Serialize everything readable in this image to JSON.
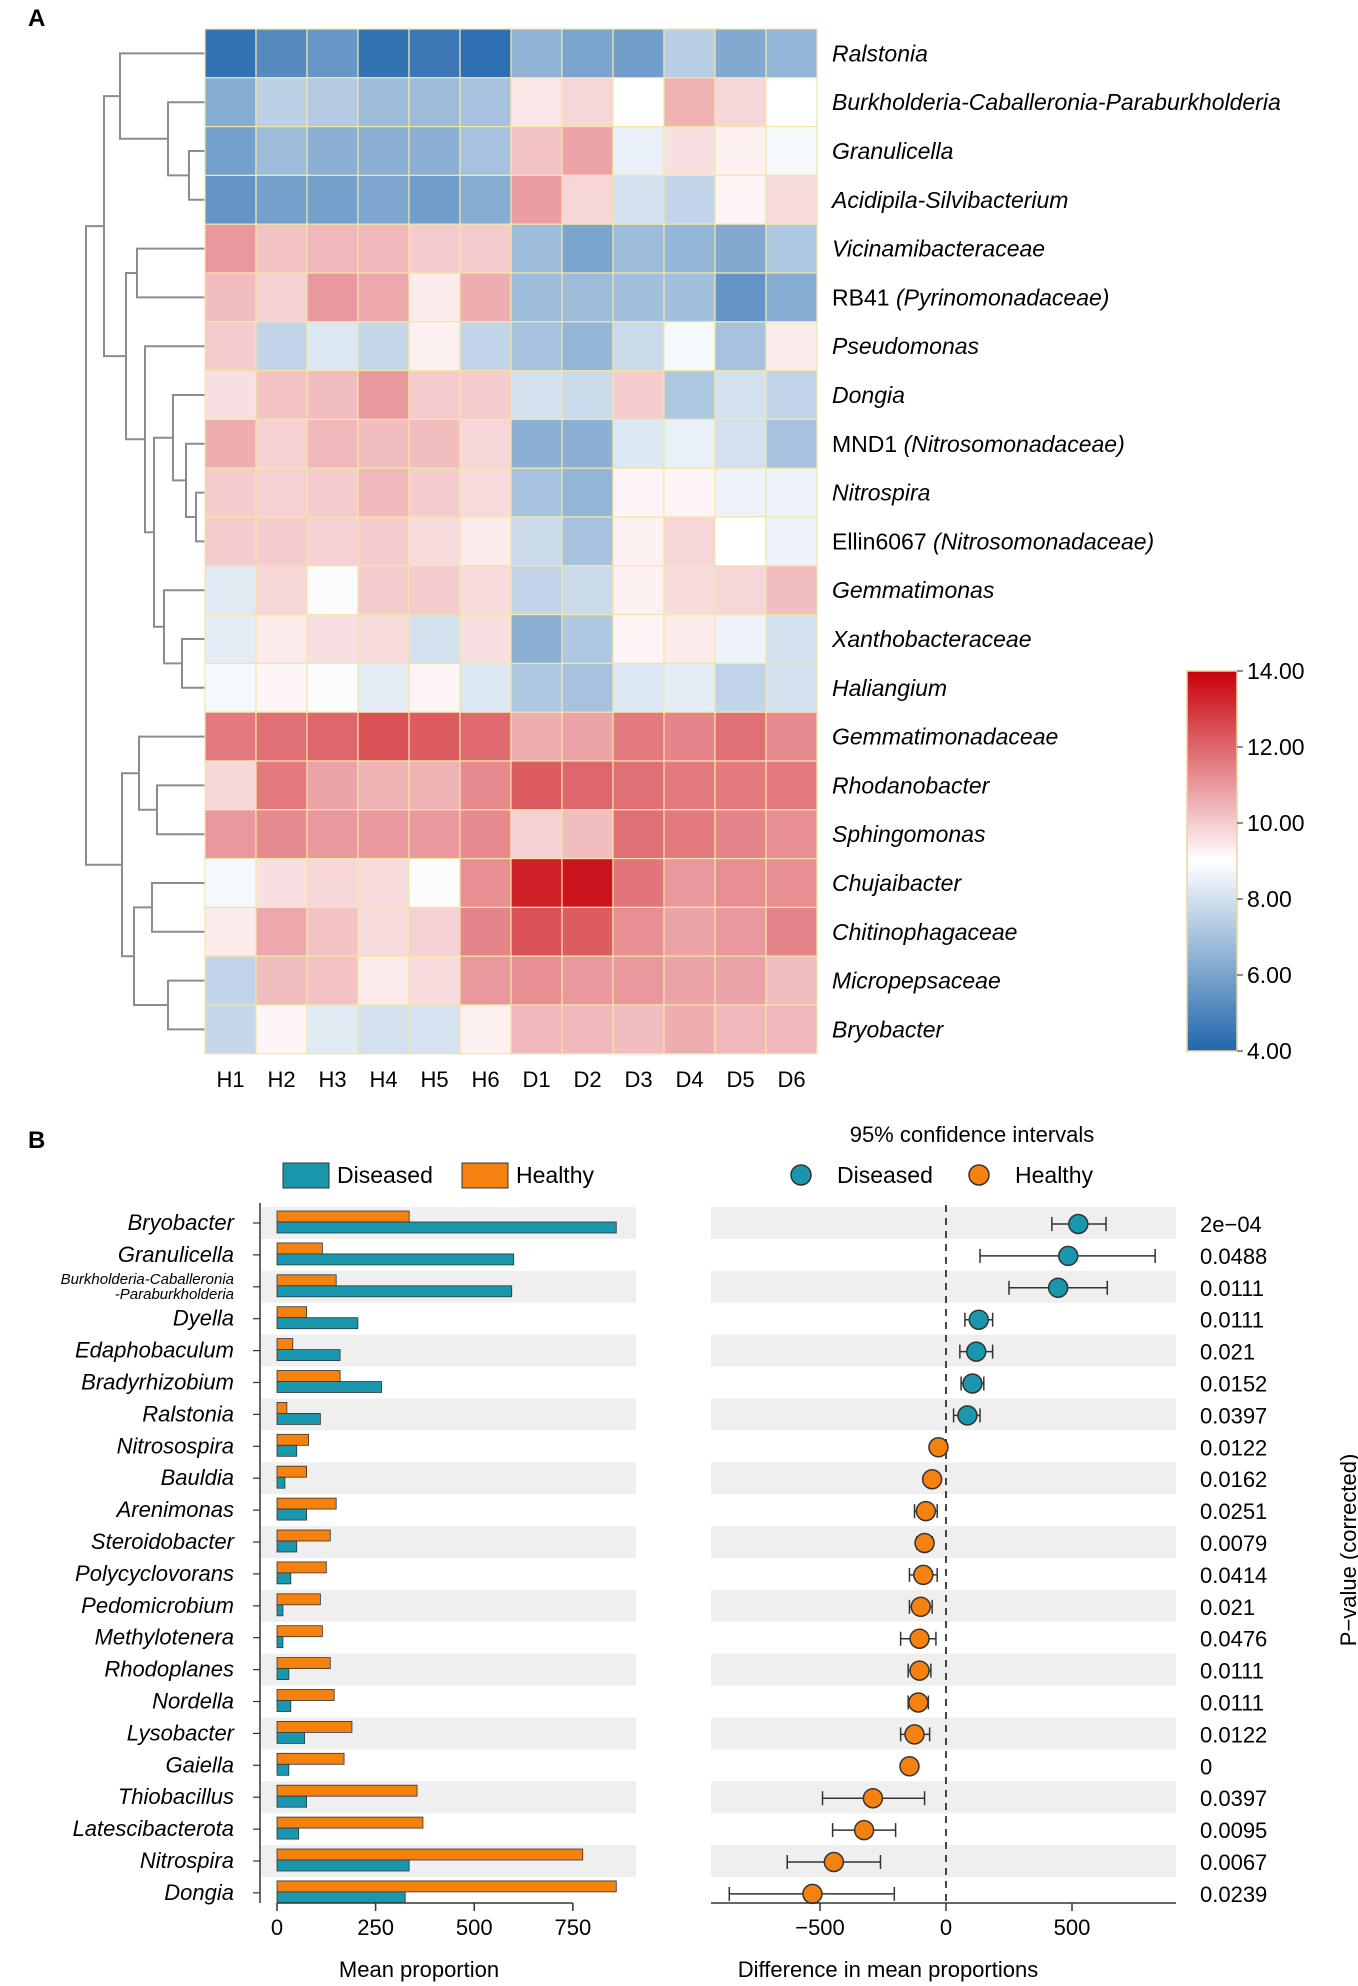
{
  "panel_labels": {
    "a": "A",
    "b": "B"
  },
  "colors": {
    "low": "#2166ac",
    "mid": "#ffffff",
    "high": "#c8000a",
    "cell_border": "#f2e6a6",
    "diseased": "#1a97ac",
    "healthy": "#f5820f",
    "row_shade": "#efefef",
    "dendrogram": "#8c8c8c"
  },
  "chart_data": [
    {
      "type": "heatmap",
      "title": "",
      "columns": [
        "H1",
        "H2",
        "H3",
        "H4",
        "H5",
        "H6",
        "D1",
        "D2",
        "D3",
        "D4",
        "D5",
        "D6"
      ],
      "rows": [
        {
          "parts": [
            {
              "t": "Ralstonia",
              "i": true
            }
          ]
        },
        {
          "parts": [
            {
              "t": "Burkholderia-Caballeronia-Paraburkholderia",
              "i": true
            }
          ]
        },
        {
          "parts": [
            {
              "t": "Granulicella",
              "i": true
            }
          ]
        },
        {
          "parts": [
            {
              "t": "Acidipila-Silvibacterium",
              "i": true
            }
          ]
        },
        {
          "parts": [
            {
              "t": "Vicinamibacteraceae",
              "i": true
            }
          ]
        },
        {
          "parts": [
            {
              "t": "RB41 ",
              "i": false
            },
            {
              "t": "(Pyrinomonadaceae)",
              "i": true
            }
          ]
        },
        {
          "parts": [
            {
              "t": "Pseudomonas",
              "i": true
            }
          ]
        },
        {
          "parts": [
            {
              "t": "Dongia",
              "i": true
            }
          ]
        },
        {
          "parts": [
            {
              "t": "MND1 ",
              "i": false
            },
            {
              "t": "(Nitrosomonadaceae)",
              "i": true
            }
          ]
        },
        {
          "parts": [
            {
              "t": "Nitrospira",
              "i": true
            }
          ]
        },
        {
          "parts": [
            {
              "t": "Ellin6067 ",
              "i": false
            },
            {
              "t": "(Nitrosomonadaceae)",
              "i": true
            }
          ]
        },
        {
          "parts": [
            {
              "t": "Gemmatimonas",
              "i": true
            }
          ]
        },
        {
          "parts": [
            {
              "t": "Xanthobacteraceae",
              "i": true
            }
          ]
        },
        {
          "parts": [
            {
              "t": "Haliangium",
              "i": true
            }
          ]
        },
        {
          "parts": [
            {
              "t": "Gemmatimonadaceae",
              "i": true
            }
          ]
        },
        {
          "parts": [
            {
              "t": "Rhodanobacter",
              "i": true
            }
          ]
        },
        {
          "parts": [
            {
              "t": "Sphingomonas",
              "i": true
            }
          ]
        },
        {
          "parts": [
            {
              "t": "Chujaibacter",
              "i": true
            }
          ]
        },
        {
          "parts": [
            {
              "t": "Chitinophagaceae",
              "i": true
            }
          ]
        },
        {
          "parts": [
            {
              "t": "Micropepsaceae",
              "i": true
            }
          ]
        },
        {
          "parts": [
            {
              "t": "Bryobacter",
              "i": true
            }
          ]
        }
      ],
      "values": [
        [
          4.4,
          5.2,
          5.6,
          4.4,
          4.6,
          4.3,
          6.5,
          6.0,
          5.8,
          7.4,
          6.2,
          6.6
        ],
        [
          6.3,
          7.5,
          7.3,
          6.8,
          6.8,
          7.0,
          9.5,
          9.8,
          9.0,
          10.5,
          9.8,
          9.0
        ],
        [
          5.9,
          6.8,
          6.4,
          6.4,
          6.4,
          7.0,
          10.2,
          10.8,
          8.5,
          9.6,
          9.3,
          8.8
        ],
        [
          5.5,
          5.9,
          5.9,
          6.1,
          5.8,
          6.3,
          10.9,
          9.8,
          8.0,
          7.6,
          9.2,
          9.7
        ],
        [
          11.0,
          10.2,
          10.4,
          10.4,
          10.0,
          10.0,
          6.8,
          6.0,
          6.8,
          6.6,
          6.2,
          7.2
        ],
        [
          10.3,
          9.9,
          11.0,
          10.7,
          9.4,
          10.6,
          6.8,
          6.8,
          6.9,
          6.9,
          5.5,
          6.3
        ],
        [
          10.0,
          7.6,
          8.2,
          7.7,
          9.3,
          7.6,
          7.0,
          6.6,
          7.8,
          8.8,
          7.0,
          9.4
        ],
        [
          9.6,
          10.2,
          10.3,
          11.0,
          10.0,
          10.0,
          8.0,
          7.8,
          10.0,
          7.2,
          8.0,
          7.6
        ],
        [
          10.6,
          9.9,
          10.4,
          10.3,
          10.3,
          9.8,
          6.4,
          6.4,
          8.2,
          8.5,
          8.0,
          7.0
        ],
        [
          10.0,
          9.9,
          10.0,
          10.4,
          10.0,
          9.7,
          7.0,
          6.6,
          9.2,
          9.2,
          8.6,
          8.6
        ],
        [
          10.0,
          10.0,
          9.9,
          10.0,
          9.7,
          9.4,
          7.8,
          7.0,
          9.3,
          9.8,
          9.0,
          8.6
        ],
        [
          8.3,
          9.8,
          8.9,
          10.0,
          10.0,
          9.7,
          7.6,
          7.8,
          9.3,
          9.7,
          9.8,
          10.3
        ],
        [
          8.4,
          9.4,
          9.6,
          9.7,
          8.0,
          9.6,
          6.4,
          7.2,
          9.2,
          9.4,
          8.6,
          8.0
        ],
        [
          8.8,
          9.2,
          8.9,
          8.4,
          9.2,
          8.2,
          7.2,
          7.0,
          8.2,
          8.4,
          7.6,
          8.0
        ],
        [
          11.6,
          11.8,
          12.0,
          12.4,
          12.2,
          11.9,
          10.6,
          10.8,
          11.6,
          11.4,
          11.8,
          11.3
        ],
        [
          9.8,
          11.6,
          10.8,
          10.5,
          10.5,
          11.3,
          12.2,
          12.0,
          11.8,
          11.6,
          11.6,
          11.6
        ],
        [
          11.0,
          11.3,
          11.0,
          11.0,
          11.0,
          11.3,
          9.9,
          10.3,
          11.8,
          11.6,
          11.4,
          11.2
        ],
        [
          8.8,
          9.6,
          9.8,
          9.7,
          8.9,
          11.2,
          13.4,
          13.6,
          11.7,
          11.0,
          11.2,
          11.2
        ],
        [
          9.4,
          10.7,
          10.2,
          9.7,
          9.9,
          11.4,
          12.4,
          12.2,
          11.2,
          10.8,
          11.0,
          11.4
        ],
        [
          7.6,
          10.3,
          10.2,
          9.4,
          9.7,
          11.0,
          11.2,
          11.0,
          11.0,
          10.8,
          10.8,
          10.3
        ],
        [
          7.7,
          9.2,
          8.3,
          8.0,
          8.1,
          9.3,
          10.4,
          10.4,
          10.3,
          10.6,
          10.4,
          10.4
        ]
      ],
      "color_range": [
        4.0,
        14.0
      ],
      "colorbar_ticks": [
        "14.00",
        "12.00",
        "10.00",
        "8.00",
        "6.00",
        "4.00"
      ]
    },
    {
      "type": "bar",
      "title": "",
      "xlabel": "Mean proportion",
      "xlim": [
        -30,
        910
      ],
      "xticks": [
        0,
        250,
        500,
        750
      ],
      "legend": [
        {
          "name": "Diseased",
          "color_key": "diseased"
        },
        {
          "name": "Healthy",
          "color_key": "healthy"
        }
      ],
      "categories": [
        "Bryobacter",
        "Granulicella",
        "Burkholderia-Caballeronia\n-Paraburkholderia",
        "Dyella",
        "Edaphobaculum",
        "Bradyrhizobium",
        "Ralstonia",
        "Nitrosospira",
        "Bauldia",
        "Arenimonas",
        "Steroidobacter",
        "Polycyclovorans",
        "Pedomicrobium",
        "Methylotenera",
        "Rhodoplanes",
        "Nordella",
        "Lysobacter",
        "Gaiella",
        "Thiobacillus",
        "Latescibacterota",
        "Nitrospira",
        "Dongia"
      ],
      "series": [
        {
          "name": "Healthy",
          "values": [
            335,
            115,
            150,
            75,
            40,
            160,
            25,
            80,
            75,
            150,
            135,
            125,
            110,
            115,
            135,
            145,
            190,
            170,
            355,
            370,
            775,
            860
          ]
        },
        {
          "name": "Diseased",
          "values": [
            860,
            600,
            595,
            205,
            160,
            265,
            110,
            50,
            20,
            75,
            50,
            35,
            15,
            15,
            30,
            35,
            70,
            30,
            75,
            55,
            335,
            325
          ]
        }
      ]
    },
    {
      "type": "scatter",
      "title": "95% confidence intervals",
      "xlabel": "Difference in mean proportions",
      "ylabel": "P−value (corrected)",
      "xlim": [
        -900,
        900
      ],
      "xticks": [
        -500,
        0,
        500
      ],
      "xtick_labels": [
        "−500",
        "0",
        "500"
      ],
      "legend": [
        {
          "name": "Diseased",
          "color_key": "diseased"
        },
        {
          "name": "Healthy",
          "color_key": "healthy"
        }
      ],
      "points": [
        {
          "diff": 525,
          "low": 420,
          "high": 635,
          "group": "diseased",
          "p": "2e−04"
        },
        {
          "diff": 485,
          "low": 135,
          "high": 830,
          "group": "diseased",
          "p": "0.0488"
        },
        {
          "diff": 445,
          "low": 250,
          "high": 640,
          "group": "diseased",
          "p": "0.0111"
        },
        {
          "diff": 130,
          "low": 75,
          "high": 185,
          "group": "diseased",
          "p": "0.0111"
        },
        {
          "diff": 120,
          "low": 55,
          "high": 185,
          "group": "diseased",
          "p": "0.021"
        },
        {
          "diff": 105,
          "low": 60,
          "high": 150,
          "group": "diseased",
          "p": "0.0152"
        },
        {
          "diff": 85,
          "low": 30,
          "high": 135,
          "group": "diseased",
          "p": "0.0397"
        },
        {
          "diff": -30,
          "low": -40,
          "high": -20,
          "group": "healthy",
          "p": "0.0122"
        },
        {
          "diff": -55,
          "low": -75,
          "high": -35,
          "group": "healthy",
          "p": "0.0162"
        },
        {
          "diff": -80,
          "low": -125,
          "high": -35,
          "group": "healthy",
          "p": "0.0251"
        },
        {
          "diff": -85,
          "low": -115,
          "high": -55,
          "group": "healthy",
          "p": "0.0079"
        },
        {
          "diff": -90,
          "low": -145,
          "high": -35,
          "group": "healthy",
          "p": "0.0414"
        },
        {
          "diff": -100,
          "low": -145,
          "high": -55,
          "group": "healthy",
          "p": "0.021"
        },
        {
          "diff": -105,
          "low": -180,
          "high": -40,
          "group": "healthy",
          "p": "0.0476"
        },
        {
          "diff": -105,
          "low": -150,
          "high": -60,
          "group": "healthy",
          "p": "0.0111"
        },
        {
          "diff": -110,
          "low": -150,
          "high": -70,
          "group": "healthy",
          "p": "0.0111"
        },
        {
          "diff": -125,
          "low": -180,
          "high": -65,
          "group": "healthy",
          "p": "0.0122"
        },
        {
          "diff": -145,
          "low": -160,
          "high": -130,
          "group": "healthy",
          "p": "0"
        },
        {
          "diff": -290,
          "low": -490,
          "high": -85,
          "group": "healthy",
          "p": "0.0397"
        },
        {
          "diff": -325,
          "low": -450,
          "high": -200,
          "group": "healthy",
          "p": "0.0095"
        },
        {
          "diff": -445,
          "low": -630,
          "high": -260,
          "group": "healthy",
          "p": "0.0067"
        },
        {
          "diff": -530,
          "low": -860,
          "high": -205,
          "group": "healthy",
          "p": "0.0239"
        }
      ]
    }
  ]
}
